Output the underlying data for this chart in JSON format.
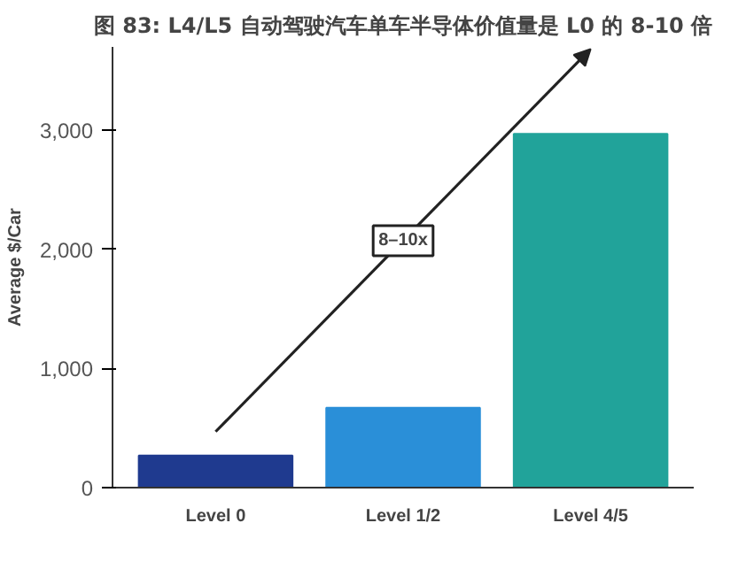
{
  "chart_data": {
    "type": "bar",
    "title": "图 83: L4/L5 自动驾驶汽车单车半导体价值量是 L0 的 8-10 倍",
    "categories": [
      "Level 0",
      "Level 1/2",
      "Level 4/5"
    ],
    "values": [
      270,
      670,
      2970
    ],
    "colors": [
      "#1f3a8f",
      "#2a8fd8",
      "#21a39a"
    ],
    "ylabel": "Average $/Car",
    "ylim": [
      0,
      3700
    ],
    "yticks": [
      0,
      {
        "value": 1000,
        "label": "1,000"
      },
      {
        "value": 2000,
        "label": "2,000"
      },
      {
        "value": 3000,
        "label": "3,000"
      }
    ],
    "annotations": [
      "8–10x"
    ],
    "grid": false
  }
}
